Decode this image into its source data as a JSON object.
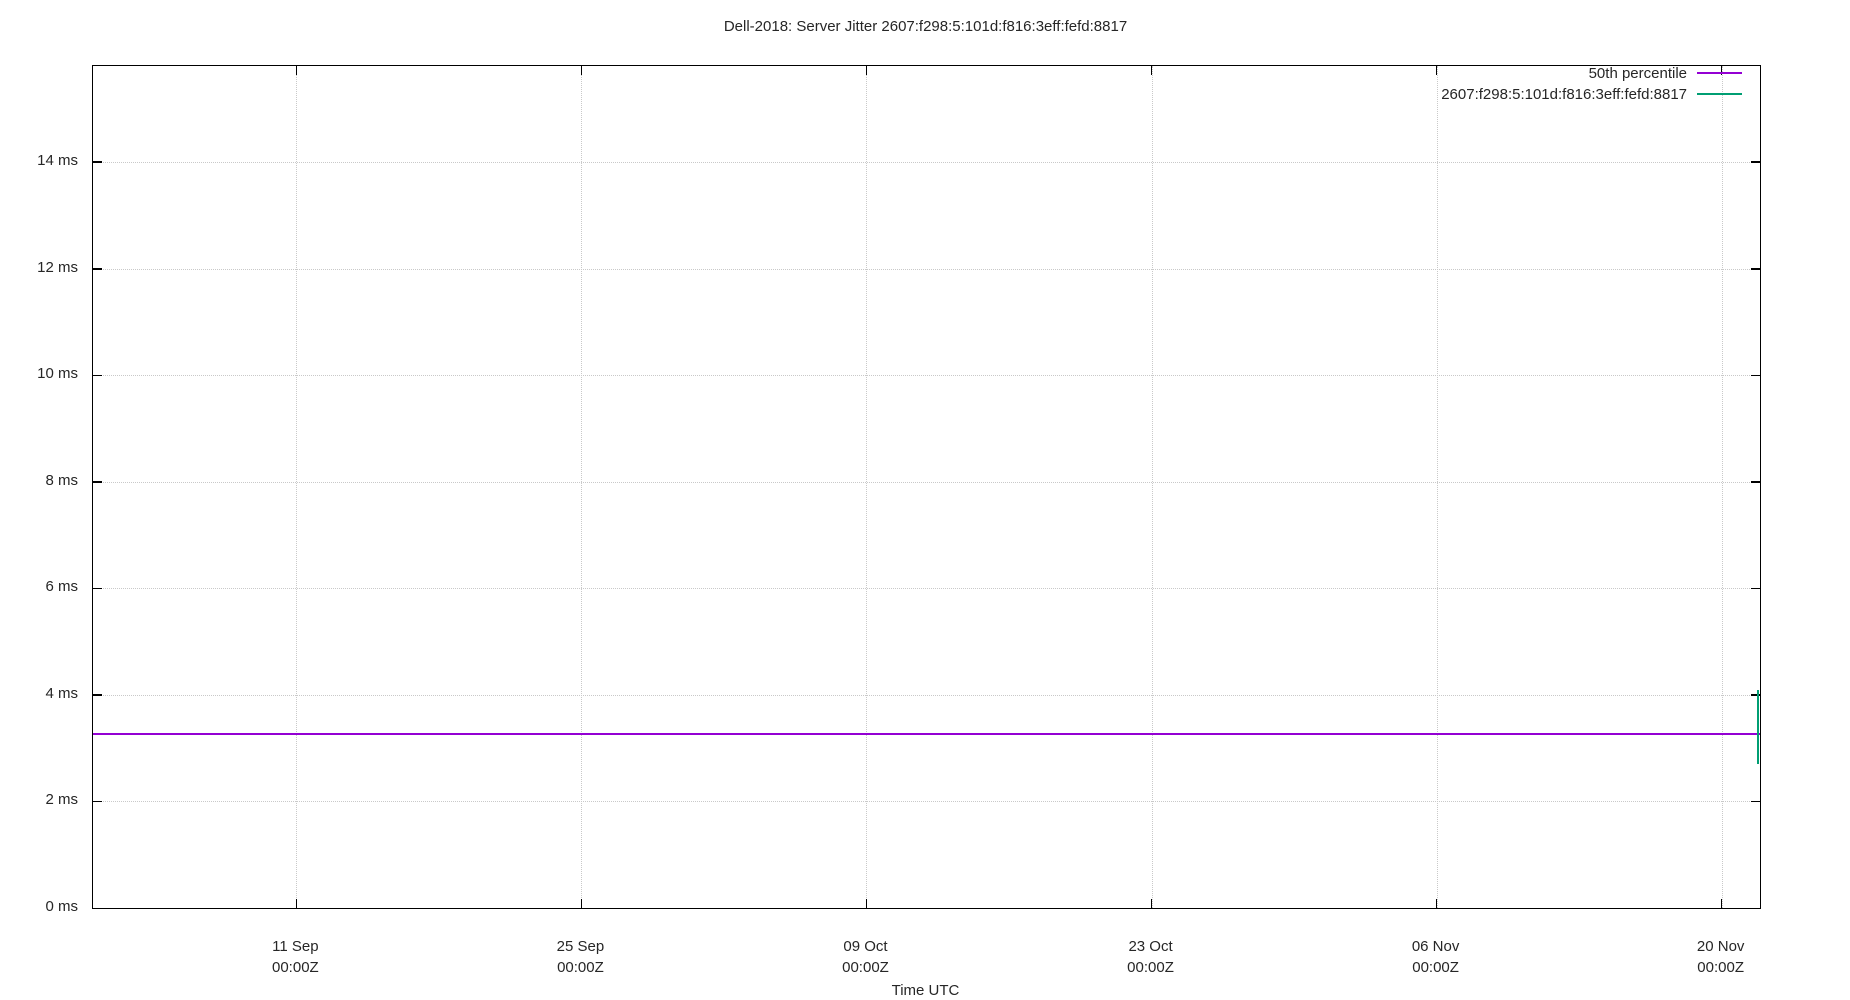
{
  "chart_data": {
    "type": "line",
    "title": "Dell-2018: Server Jitter 2607:f298:5:101d:f816:3eff:fefd:8817",
    "xlabel": "Time UTC",
    "ylabel": "",
    "y_unit": "ms",
    "ylim": [
      0,
      15.8
    ],
    "grid": true,
    "legend_position": "top-right-inside",
    "y_ticks": [
      {
        "value": 0,
        "label": "0 ms"
      },
      {
        "value": 2,
        "label": "2 ms"
      },
      {
        "value": 4,
        "label": "4 ms"
      },
      {
        "value": 6,
        "label": "6 ms"
      },
      {
        "value": 8,
        "label": "8 ms"
      },
      {
        "value": 10,
        "label": "10 ms"
      },
      {
        "value": 12,
        "label": "12 ms"
      },
      {
        "value": 14,
        "label": "14 ms"
      }
    ],
    "x_ticks": [
      {
        "frac": 0.122,
        "date": "11 Sep",
        "time": "00:00Z"
      },
      {
        "frac": 0.293,
        "date": "25 Sep",
        "time": "00:00Z"
      },
      {
        "frac": 0.464,
        "date": "09 Oct",
        "time": "00:00Z"
      },
      {
        "frac": 0.635,
        "date": "23 Oct",
        "time": "00:00Z"
      },
      {
        "frac": 0.806,
        "date": "06 Nov",
        "time": "00:00Z"
      },
      {
        "frac": 0.977,
        "date": "20 Nov",
        "time": "00:00Z"
      }
    ],
    "series": [
      {
        "name": "50th percentile",
        "color": "#9400d3",
        "shape": "hline",
        "value_ms": 3.27
      },
      {
        "name": "2607:f298:5:101d:f816:3eff:fefd:8817",
        "color": "#009e73",
        "shape": "vline",
        "x_frac": 0.999,
        "from_ms": 2.7,
        "to_ms": 4.1
      }
    ],
    "colors": {
      "grid": "#c9c9c9",
      "border": "#000000",
      "text": "#262626",
      "background": "#ffffff"
    }
  }
}
